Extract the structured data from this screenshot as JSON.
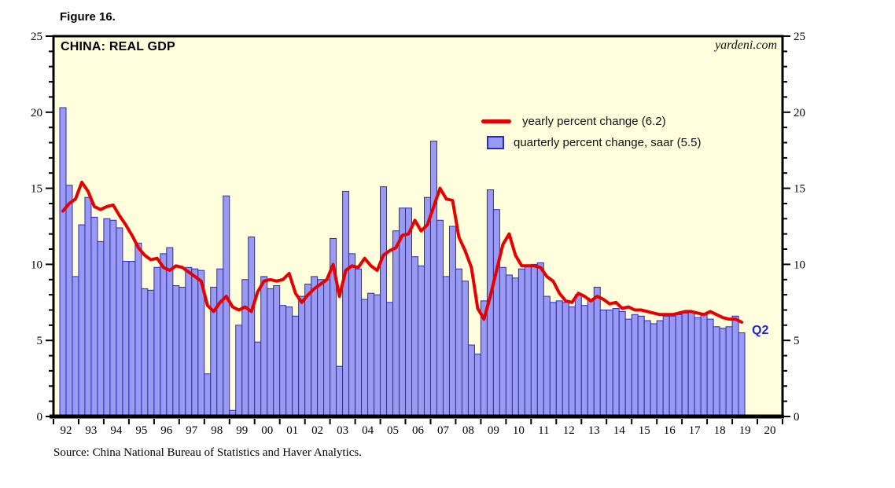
{
  "figure_label": "Figure 16.",
  "title": "CHINA: REAL GDP",
  "watermark": "yardeni.com",
  "source": "Source: China National Bureau of Statistics and Haver Analytics.",
  "last_point_label": "Q2",
  "legend": {
    "yearly_label": "yearly percent change (6.2)",
    "quarterly_label": "quarterly percent change, saar (5.5)"
  },
  "colors": {
    "plot_bg": "#ffffdd",
    "bar_fill": "#9a9af0",
    "bar_border": "#2929c8",
    "line": "#e60000",
    "last_point_label_color": "#2222dd",
    "axis": "#000000"
  },
  "axes": {
    "ylim": [
      0,
      25
    ],
    "y_ticks": [
      0,
      5,
      10,
      15,
      20,
      25
    ],
    "y_minor_step": 1,
    "x_year_labels": [
      "92",
      "93",
      "94",
      "95",
      "96",
      "97",
      "98",
      "99",
      "00",
      "01",
      "02",
      "03",
      "04",
      "05",
      "06",
      "07",
      "08",
      "09",
      "10",
      "11",
      "12",
      "13",
      "14",
      "15",
      "16",
      "17",
      "18",
      "19",
      "20"
    ]
  },
  "chart_data": {
    "type": "bar",
    "title": "CHINA: REAL GDP",
    "x_start": "1992Q2",
    "x_end": "2019Q2",
    "quarters_per_year": 4,
    "ylim": [
      0,
      25
    ],
    "grid": false,
    "legend_position": "upper-middle-right",
    "series": [
      {
        "name": "quarterly percent change, saar",
        "type": "bar",
        "latest_value": 5.5,
        "values": [
          20.3,
          15.2,
          9.2,
          12.6,
          14.4,
          13.1,
          11.5,
          13.0,
          12.9,
          12.4,
          10.2,
          10.2,
          11.4,
          8.4,
          8.3,
          9.8,
          10.7,
          11.1,
          8.6,
          8.5,
          9.8,
          9.7,
          9.6,
          2.8,
          8.5,
          9.7,
          14.5,
          0.4,
          6.0,
          9.0,
          11.8,
          4.9,
          9.2,
          8.4,
          8.6,
          7.3,
          7.2,
          6.6,
          7.9,
          8.7,
          9.2,
          9.0,
          9.0,
          11.7,
          3.3,
          14.8,
          10.7,
          9.7,
          7.7,
          8.1,
          8.0,
          15.1,
          7.5,
          12.2,
          13.7,
          13.7,
          10.5,
          9.9,
          14.4,
          18.1,
          12.9,
          9.2,
          12.5,
          9.7,
          8.9,
          4.7,
          4.1,
          7.6,
          14.9,
          13.6,
          9.8,
          9.3,
          9.1,
          9.7,
          9.9,
          10.0,
          10.1,
          7.9,
          7.5,
          7.6,
          7.5,
          7.2,
          8.0,
          7.3,
          7.7,
          8.5,
          7.0,
          7.0,
          7.1,
          6.9,
          6.4,
          6.7,
          6.6,
          6.3,
          6.1,
          6.3,
          6.6,
          6.6,
          6.7,
          6.8,
          6.9,
          6.5,
          6.7,
          6.4,
          5.9,
          5.8,
          5.9,
          6.6,
          5.5
        ]
      },
      {
        "name": "yearly percent change",
        "type": "line",
        "latest_value": 6.2,
        "values": [
          13.5,
          14.0,
          14.3,
          15.4,
          14.8,
          13.8,
          13.6,
          13.8,
          13.9,
          13.2,
          12.6,
          11.9,
          11.1,
          10.6,
          10.3,
          10.4,
          9.8,
          9.6,
          9.9,
          9.8,
          9.5,
          9.2,
          8.9,
          7.3,
          6.9,
          7.5,
          7.9,
          7.2,
          7.0,
          7.2,
          6.9,
          8.2,
          8.9,
          9.0,
          8.9,
          9.0,
          9.4,
          8.1,
          7.5,
          8.0,
          8.4,
          8.7,
          9.0,
          10.0,
          7.9,
          9.6,
          9.9,
          9.8,
          10.4,
          9.9,
          9.6,
          10.6,
          10.9,
          11.1,
          11.9,
          12.0,
          12.9,
          12.2,
          12.6,
          13.8,
          15.0,
          14.3,
          14.2,
          11.8,
          10.9,
          9.8,
          7.1,
          6.4,
          7.9,
          9.6,
          11.3,
          12.0,
          10.6,
          9.9,
          9.9,
          9.9,
          9.8,
          9.2,
          8.9,
          8.1,
          7.6,
          7.5,
          8.1,
          7.9,
          7.6,
          7.9,
          7.7,
          7.4,
          7.5,
          7.1,
          7.2,
          7.0,
          7.0,
          6.9,
          6.8,
          6.7,
          6.7,
          6.7,
          6.8,
          6.9,
          6.9,
          6.8,
          6.7,
          6.9,
          6.7,
          6.5,
          6.4,
          6.4,
          6.2
        ]
      }
    ]
  }
}
